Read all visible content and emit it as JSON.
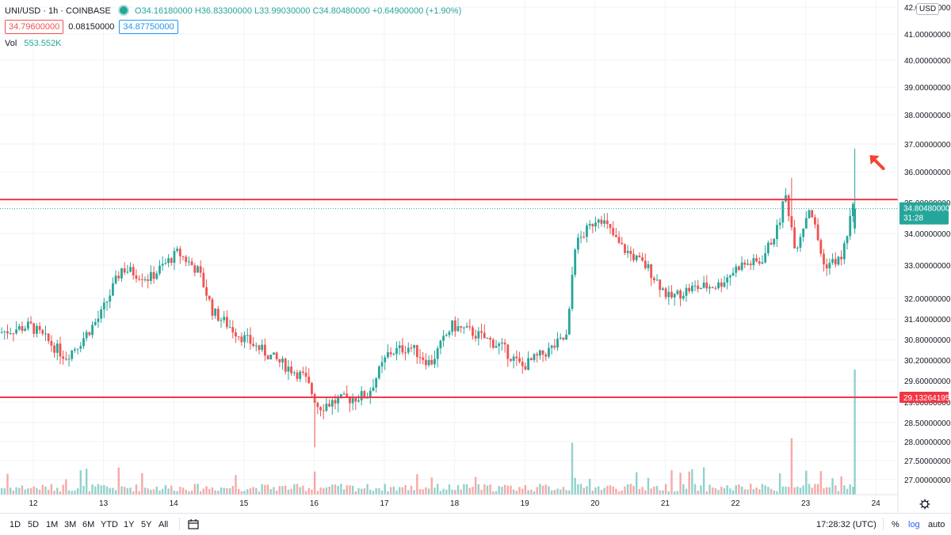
{
  "header": {
    "symbol": "UNI/USD · 1h · COINBASE",
    "ohlc": "O34.16180000  H36.83300000  L33.99030000  C34.80480000  +0.64900000 (+1.90%)",
    "bid": "34.79600000",
    "spread": "0.08150000",
    "ask": "34.87750000",
    "volume_label": "Vol",
    "volume_value": "553.552K"
  },
  "price_axis": {
    "currency": "USD",
    "labels": [
      {
        "text": "42.00000000",
        "value": 42.0
      },
      {
        "text": "41.00000000",
        "value": 41.0
      },
      {
        "text": "40.00000000",
        "value": 40.0
      },
      {
        "text": "39.00000000",
        "value": 39.0
      },
      {
        "text": "38.00000000",
        "value": 38.0
      },
      {
        "text": "37.00000000",
        "value": 37.0
      },
      {
        "text": "36.00000000",
        "value": 36.0
      },
      {
        "text": "35.00000000",
        "value": 35.0
      },
      {
        "text": "34.00000000",
        "value": 34.0
      },
      {
        "text": "33.00000000",
        "value": 33.0
      },
      {
        "text": "32.00000000",
        "value": 32.0
      },
      {
        "text": "31.40000000",
        "value": 31.4
      },
      {
        "text": "30.80000000",
        "value": 30.8
      },
      {
        "text": "30.20000000",
        "value": 30.2
      },
      {
        "text": "29.60000000",
        "value": 29.6
      },
      {
        "text": "29.00000000",
        "value": 29.0
      },
      {
        "text": "28.50000000",
        "value": 28.5
      },
      {
        "text": "28.00000000",
        "value": 28.0
      },
      {
        "text": "27.50000000",
        "value": 27.5
      },
      {
        "text": "27.00000000",
        "value": 27.0
      }
    ],
    "last_price_label": "34.80480000",
    "countdown": "31:28",
    "support_label": "29.13264195"
  },
  "time_axis": {
    "labels": [
      "12",
      "13",
      "14",
      "15",
      "16",
      "17",
      "18",
      "19",
      "20",
      "21",
      "22",
      "23",
      "24"
    ]
  },
  "bottom_bar": {
    "timeframes": [
      "1D",
      "5D",
      "1M",
      "3M",
      "6M",
      "YTD",
      "1Y",
      "5Y",
      "All"
    ],
    "clock": "17:28:32 (UTC)",
    "percent": "%",
    "log": "log",
    "auto": "auto"
  },
  "colors": {
    "up": "#26a69a",
    "down": "#ef5350",
    "level_line": "#f23645",
    "arrow": "#f44336",
    "grid": "#f0f3fa"
  },
  "chart_data": {
    "type": "candlestick",
    "symbol": "UNI/USD",
    "interval": "1h",
    "exchange": "COINBASE",
    "x_axis_days": [
      "12",
      "13",
      "14",
      "15",
      "16",
      "17",
      "18",
      "19",
      "20",
      "21",
      "22",
      "23",
      "24"
    ],
    "ylim": [
      26.8,
      42.0
    ],
    "horizontal_levels": [
      35.1,
      29.13264195
    ],
    "last_price": 34.8048,
    "annotation": "red arrow pointing at latest candle wick",
    "price_path_anchors": [
      {
        "day": 11.55,
        "close": 31.0
      },
      {
        "day": 12.0,
        "close": 31.2
      },
      {
        "day": 12.5,
        "close": 30.3
      },
      {
        "day": 12.7,
        "close": 30.7
      },
      {
        "day": 13.0,
        "close": 31.5
      },
      {
        "day": 13.3,
        "close": 32.9
      },
      {
        "day": 13.7,
        "close": 32.6
      },
      {
        "day": 14.1,
        "close": 33.4
      },
      {
        "day": 14.4,
        "close": 32.8
      },
      {
        "day": 14.6,
        "close": 31.6
      },
      {
        "day": 15.0,
        "close": 30.9
      },
      {
        "day": 15.5,
        "close": 30.2
      },
      {
        "day": 15.9,
        "close": 29.7
      },
      {
        "day": 16.1,
        "close": 28.9
      },
      {
        "day": 16.3,
        "close": 29.0
      },
      {
        "day": 16.8,
        "close": 29.2
      },
      {
        "day": 17.1,
        "close": 30.4
      },
      {
        "day": 17.4,
        "close": 30.6
      },
      {
        "day": 17.7,
        "close": 30.1
      },
      {
        "day": 18.0,
        "close": 31.2
      },
      {
        "day": 18.3,
        "close": 31.0
      },
      {
        "day": 18.7,
        "close": 30.6
      },
      {
        "day": 19.0,
        "close": 30.0
      },
      {
        "day": 19.4,
        "close": 30.5
      },
      {
        "day": 19.65,
        "close": 30.9
      },
      {
        "day": 19.75,
        "close": 33.6
      },
      {
        "day": 20.1,
        "close": 34.6
      },
      {
        "day": 20.4,
        "close": 33.6
      },
      {
        "day": 20.8,
        "close": 32.9
      },
      {
        "day": 21.1,
        "close": 32.0
      },
      {
        "day": 21.4,
        "close": 32.3
      },
      {
        "day": 21.8,
        "close": 32.4
      },
      {
        "day": 22.1,
        "close": 33.0
      },
      {
        "day": 22.4,
        "close": 33.1
      },
      {
        "day": 22.65,
        "close": 34.2
      },
      {
        "day": 22.75,
        "close": 35.3
      },
      {
        "day": 22.9,
        "close": 33.5
      },
      {
        "day": 23.1,
        "close": 34.9
      },
      {
        "day": 23.3,
        "close": 33.0
      },
      {
        "day": 23.55,
        "close": 33.2
      },
      {
        "day": 23.65,
        "close": 34.16
      },
      {
        "day": 23.7,
        "close": 34.8048
      }
    ],
    "latest_candle": {
      "open": 34.1618,
      "high": 36.833,
      "low": 33.9903,
      "close": 34.8048,
      "volume": "553.552K"
    }
  }
}
